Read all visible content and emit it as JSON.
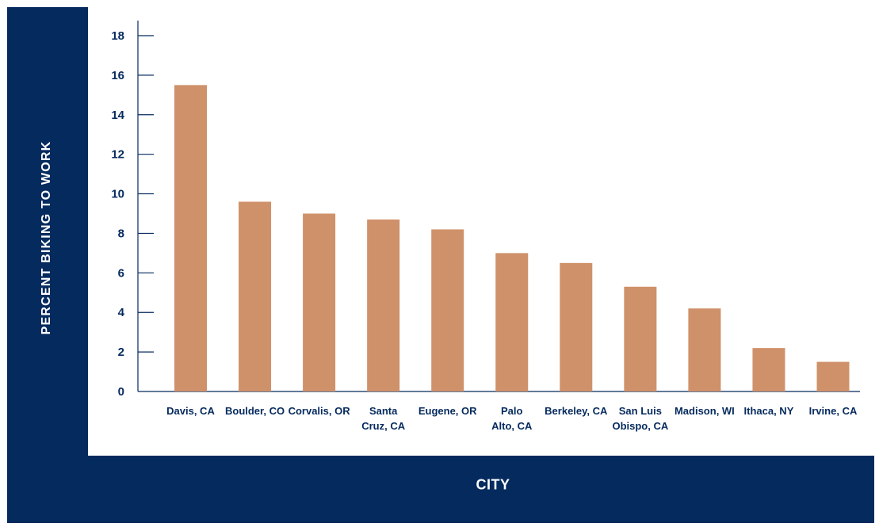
{
  "colors": {
    "frame": "#052a5e",
    "bar": "#cf916a",
    "axis": "#052a5e",
    "text": "#052a5e",
    "axis_title_text": "#ffffff",
    "plot_background": "#ffffff"
  },
  "chart_data": {
    "type": "bar",
    "title": "",
    "xlabel": "CITY",
    "ylabel": "PERCENT BIKING TO WORK",
    "ylim": [
      0,
      18
    ],
    "yticks": [
      "0",
      "2",
      "4",
      "6",
      "8",
      "10",
      "12",
      "14",
      "16",
      "18"
    ],
    "grid": false,
    "legend": "none",
    "categories": [
      "Davis, CA",
      "Boulder, CO",
      "Corvalis, OR",
      "Santa Cruz, CA",
      "Eugene, OR",
      "Palo Alto, CA",
      "Berkeley, CA",
      "San Luis Obispo, CA",
      "Madison, WI",
      "Ithaca, NY",
      "Irvine, CA"
    ],
    "category_label_lines": [
      [
        "Davis, CA"
      ],
      [
        "Boulder, CO"
      ],
      [
        "Corvalis, OR"
      ],
      [
        "Santa",
        "Cruz, CA"
      ],
      [
        "Eugene, OR"
      ],
      [
        "Palo",
        "Alto, CA"
      ],
      [
        "Berkeley, CA"
      ],
      [
        "San Luis",
        "Obispo, CA"
      ],
      [
        "Madison, WI"
      ],
      [
        "Ithaca, NY"
      ],
      [
        "Irvine, CA"
      ]
    ],
    "values": [
      15.5,
      9.6,
      9.0,
      8.7,
      8.2,
      7.0,
      6.5,
      5.3,
      4.2,
      2.2,
      1.5
    ]
  }
}
